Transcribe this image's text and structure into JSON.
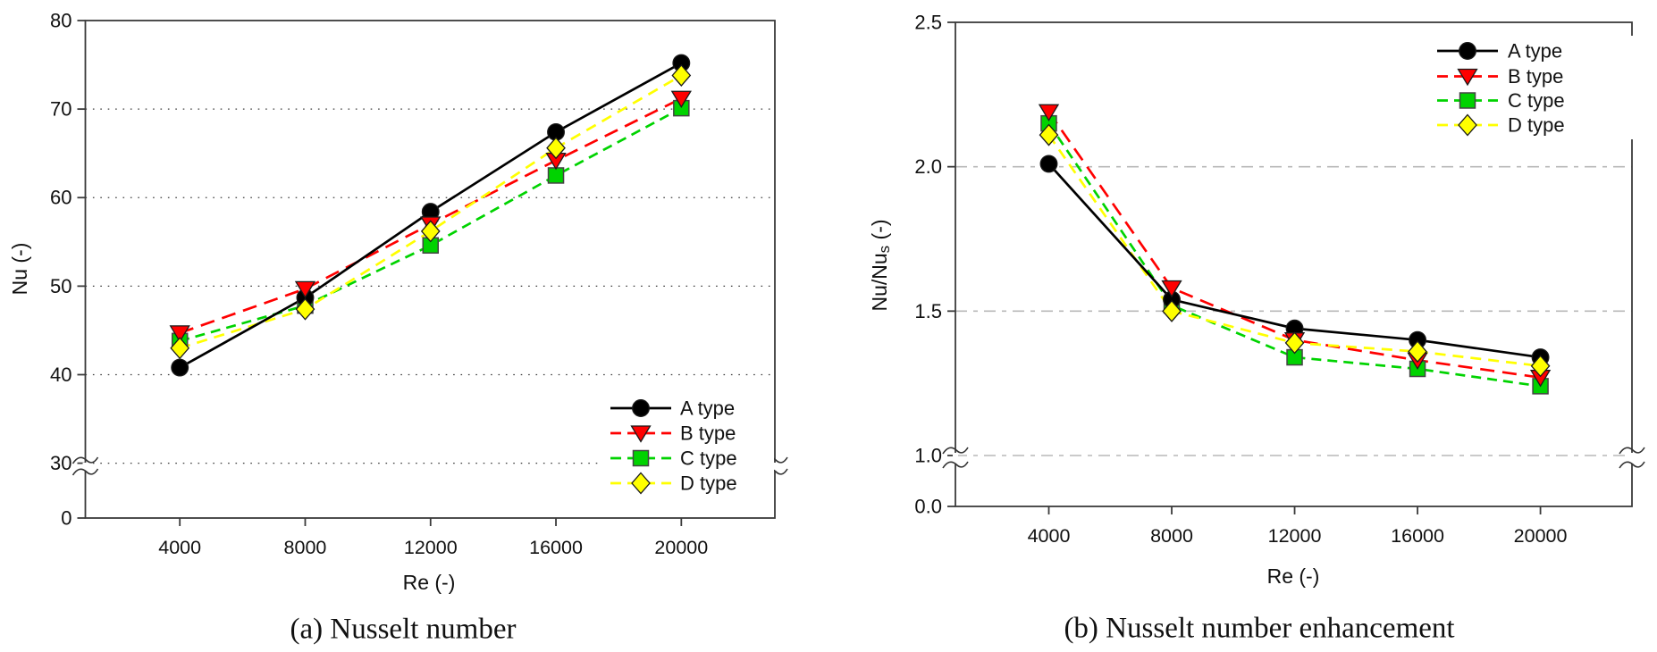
{
  "figure": {
    "background": "#ffffff",
    "text_color": "#111111",
    "axis_color": "#3a3a3a"
  },
  "chart_data": [
    {
      "id": "a",
      "type": "line",
      "title": "(a) Nusselt number",
      "xlabel": "Re (-)",
      "ylabel": "Nu (-)",
      "ylabel_sub": "",
      "ylabel_suffix": "",
      "x": [
        4000,
        8000,
        12000,
        16000,
        20000
      ],
      "x_tick_labels": [
        "4000",
        "8000",
        "12000",
        "16000",
        "20000"
      ],
      "series": [
        {
          "name": "A type",
          "color": "#000000",
          "marker": "circle",
          "line": "solid",
          "values": [
            40.8,
            48.7,
            58.4,
            67.4,
            75.2
          ]
        },
        {
          "name": "B type",
          "color": "#ff0000",
          "marker": "triangle-down",
          "line": "dashed",
          "values": [
            44.7,
            49.7,
            57.0,
            64.2,
            71.2
          ]
        },
        {
          "name": "C type",
          "color": "#00d300",
          "marker": "square",
          "line": "dashed",
          "values": [
            43.8,
            47.8,
            54.6,
            62.5,
            70.1
          ]
        },
        {
          "name": "D type",
          "color": "#ffff00",
          "marker": "diamond",
          "line": "dashed",
          "values": [
            43.0,
            47.4,
            56.2,
            65.6,
            73.8
          ]
        }
      ],
      "y_axis": {
        "range_main": [
          30,
          80
        ],
        "axis_break": "between 0 and 30 (squiggle marks)",
        "ticks": [
          0,
          30,
          40,
          50,
          60,
          70,
          80
        ],
        "tick_labels": [
          "0",
          "30",
          "40",
          "50",
          "60",
          "70",
          "80"
        ],
        "gridlines": [
          30,
          40,
          50,
          60,
          70
        ],
        "grid_style": "dotted-black"
      },
      "legend": {
        "position": "bottom-right",
        "items": [
          "A type",
          "B type",
          "C type",
          "D type"
        ]
      }
    },
    {
      "id": "b",
      "type": "line",
      "title": "(b) Nusselt number enhancement",
      "xlabel": "Re (-)",
      "ylabel": "Nu/Nu",
      "ylabel_sub": "s",
      "ylabel_suffix": " (-)",
      "x": [
        4000,
        8000,
        12000,
        16000,
        20000
      ],
      "x_tick_labels": [
        "4000",
        "8000",
        "12000",
        "16000",
        "20000"
      ],
      "series": [
        {
          "name": "A type",
          "color": "#000000",
          "marker": "circle",
          "line": "solid",
          "values": [
            2.01,
            1.54,
            1.44,
            1.4,
            1.34
          ]
        },
        {
          "name": "B type",
          "color": "#ff0000",
          "marker": "triangle-down",
          "line": "dashed",
          "values": [
            2.19,
            1.58,
            1.4,
            1.33,
            1.27
          ]
        },
        {
          "name": "C type",
          "color": "#00d300",
          "marker": "square",
          "line": "dashed",
          "values": [
            2.15,
            1.52,
            1.34,
            1.3,
            1.24
          ]
        },
        {
          "name": "D type",
          "color": "#ffff00",
          "marker": "diamond",
          "line": "dashed",
          "values": [
            2.11,
            1.5,
            1.39,
            1.36,
            1.31
          ]
        }
      ],
      "y_axis": {
        "range_main": [
          1.0,
          2.5
        ],
        "axis_break": "between 0.0 and 1.0 (squiggle marks)",
        "ticks": [
          0.0,
          1.0,
          1.5,
          2.0,
          2.5
        ],
        "tick_labels": [
          "0.0",
          "1.0",
          "1.5",
          "2.0",
          "2.5"
        ],
        "gridlines": [
          1.0,
          1.5,
          2.0
        ],
        "grid_style": "dashed-gray"
      },
      "legend": {
        "position": "top-right",
        "items": [
          "A type",
          "B type",
          "C type",
          "D type"
        ]
      }
    }
  ]
}
